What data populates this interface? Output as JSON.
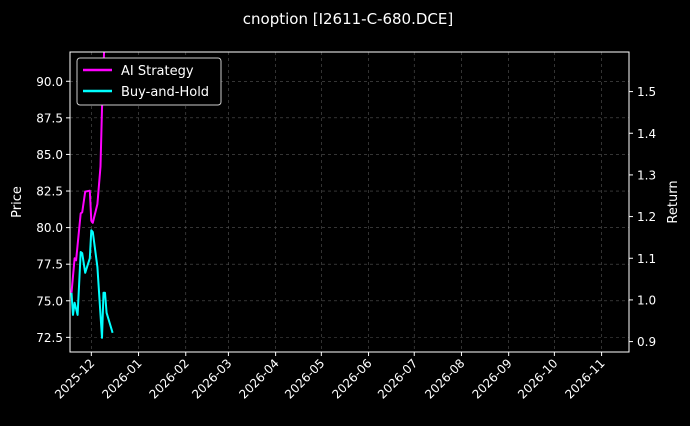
{
  "chart_data": {
    "type": "line",
    "title": "cnoption [I2611-C-680.DCE]",
    "ylabel": "Price",
    "y2label": "Return",
    "xlim": [
      "2025-11-17",
      "2026-11-19"
    ],
    "ylim": [
      71.5,
      92.0
    ],
    "y2lim": [
      0.875,
      1.595
    ],
    "xticks": [
      "2025-12",
      "2026-01",
      "2026-02",
      "2026-03",
      "2026-04",
      "2026-05",
      "2026-06",
      "2026-07",
      "2026-08",
      "2026-09",
      "2026-10",
      "2026-11"
    ],
    "yticks": [
      "72.5",
      "75.0",
      "77.5",
      "80.0",
      "82.5",
      "85.0",
      "87.5",
      "90.0"
    ],
    "y2ticks": [
      "0.9",
      "1.0",
      "1.1",
      "1.2",
      "1.3",
      "1.4",
      "1.5"
    ],
    "grid": true,
    "legend_position": "top-left",
    "background": "#000000",
    "series": [
      {
        "name": "AI Strategy",
        "color": "#ff00ff",
        "axis": "right",
        "x": [
          "2025-11-18",
          "2025-11-20",
          "2025-11-21",
          "2025-11-24",
          "2025-11-25",
          "2025-11-27",
          "2025-11-30",
          "2025-12-01",
          "2025-12-02",
          "2025-12-05",
          "2025-12-07",
          "2025-12-08",
          "2025-12-09",
          "2025-12-10"
        ],
        "y": [
          1.017,
          1.1,
          1.095,
          1.208,
          1.21,
          1.26,
          1.262,
          1.19,
          1.185,
          1.23,
          1.32,
          1.46,
          1.56,
          1.65
        ]
      },
      {
        "name": "Buy-and-Hold",
        "color": "#00ffff",
        "axis": "right",
        "x": [
          "2025-11-18",
          "2025-11-19",
          "2025-11-20",
          "2025-11-22",
          "2025-11-24",
          "2025-11-25",
          "2025-11-27",
          "2025-11-30",
          "2025-12-01",
          "2025-12-02",
          "2025-12-05",
          "2025-12-08",
          "2025-12-09",
          "2025-12-10",
          "2025-12-11",
          "2025-12-15"
        ],
        "y": [
          1.017,
          0.964,
          0.993,
          0.964,
          1.115,
          1.112,
          1.065,
          1.1,
          1.167,
          1.163,
          1.079,
          0.909,
          1.017,
          1.017,
          0.969,
          0.921
        ]
      }
    ]
  }
}
